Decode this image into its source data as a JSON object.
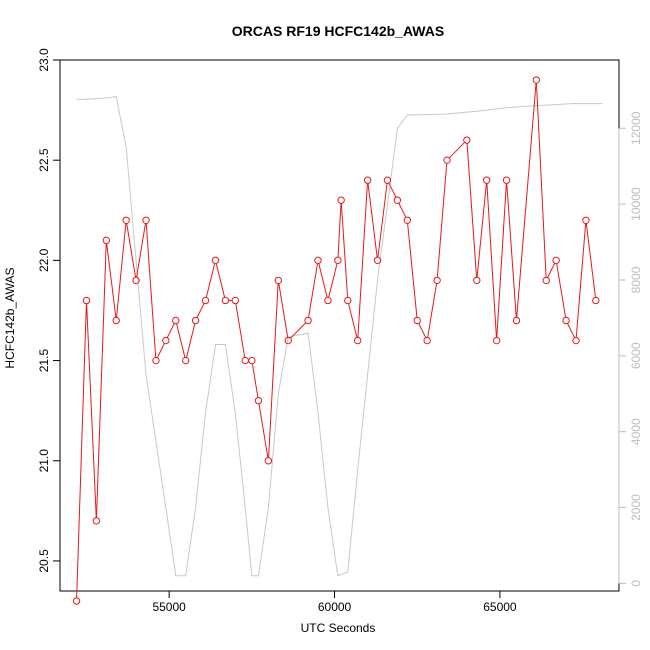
{
  "chart_data": {
    "type": "line",
    "title": "ORCAS RF19 HCFC142b_AWAS",
    "xlabel": "UTC Seconds",
    "ylabel": "HCFC142b_AWAS",
    "xlim": [
      51700,
      68600
    ],
    "ylim": [
      20.35,
      23.0
    ],
    "y2lim": [
      -200,
      13800
    ],
    "xticks": [
      55000,
      60000,
      65000
    ],
    "yticks": [
      20.5,
      21.0,
      21.5,
      22.0,
      22.5,
      23.0
    ],
    "y2ticks": [
      0,
      2000,
      4000,
      6000,
      8000,
      10000,
      12000
    ],
    "grid": false,
    "legend": "none",
    "colors": {
      "series": "#e41a1c",
      "altitude": "#c8c8c8",
      "axis": "#000000",
      "right_axis": "#bdbdbd"
    },
    "series": [
      {
        "x": [
          52200,
          52500,
          52800,
          53100,
          53400,
          53700,
          54000,
          54300,
          54600,
          54900,
          55200,
          55500,
          55800,
          56100,
          56400,
          56700,
          57000,
          57300,
          57500,
          57700,
          58000,
          58300,
          58600,
          59200,
          59500,
          59800,
          60100,
          60200,
          60400,
          60700,
          61000,
          61300,
          61600,
          61900,
          62200,
          62500,
          62800,
          63100,
          63400,
          64000,
          64300,
          64600,
          64900,
          65200,
          65500,
          66100,
          66400,
          66700,
          67000,
          67300,
          67600,
          67900
        ],
        "y": [
          20.3,
          21.8,
          20.7,
          22.1,
          21.7,
          22.2,
          21.9,
          22.2,
          21.5,
          21.6,
          21.7,
          21.5,
          21.7,
          21.8,
          22.0,
          21.8,
          21.8,
          21.5,
          21.5,
          21.3,
          21.0,
          21.9,
          21.6,
          21.7,
          22.0,
          21.8,
          22.0,
          22.3,
          21.8,
          21.6,
          22.4,
          22.0,
          22.4,
          22.3,
          22.2,
          21.7,
          21.6,
          21.9,
          22.5,
          22.6,
          21.9,
          22.4,
          21.6,
          22.4,
          21.7,
          22.9,
          21.9,
          22.0,
          21.7,
          21.6,
          22.2,
          21.8
        ]
      }
    ],
    "altitude": {
      "x": [
        52200,
        52800,
        53100,
        53400,
        53700,
        54300,
        54900,
        55200,
        55500,
        55800,
        56100,
        56400,
        56700,
        57000,
        57300,
        57500,
        57700,
        58000,
        58300,
        58600,
        59200,
        59500,
        59800,
        60100,
        60400,
        60700,
        61000,
        61300,
        61600,
        61900,
        62200,
        63300,
        64300,
        65300,
        66200,
        67200,
        68100
      ],
      "y": [
        12750,
        12780,
        12800,
        12830,
        11500,
        5500,
        2000,
        200,
        200,
        2000,
        4500,
        6300,
        6300,
        4500,
        2000,
        200,
        200,
        2000,
        5000,
        6500,
        6600,
        4500,
        2000,
        200,
        300,
        3000,
        5500,
        8000,
        10000,
        12000,
        12350,
        12370,
        12450,
        12550,
        12600,
        12650,
        12650
      ]
    }
  }
}
